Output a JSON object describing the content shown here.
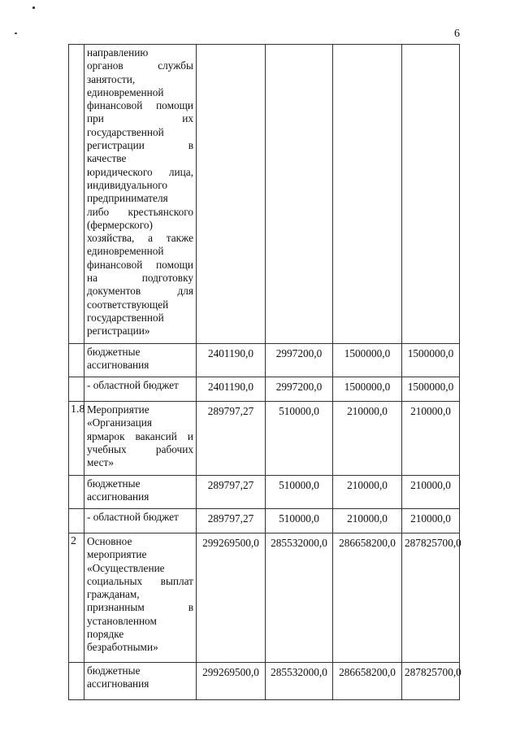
{
  "page_number": "6",
  "rows": [
    {
      "index": "",
      "lines": [
        "направлению",
        "органов службы",
        "занятости,",
        "единовременной",
        "финансовой помощи",
        "при их",
        "государственной",
        "регистрации в",
        "качестве",
        "юридического лица,",
        "индивидуального",
        "предпринимателя",
        "либо крестьянского",
        "(фермерского)",
        "хозяйства, а также",
        "единовременной",
        "финансовой помощи",
        "на подготовку",
        "документов для",
        "соответствующей",
        "государственной",
        "регистрации»"
      ],
      "values": [
        "",
        "",
        "",
        ""
      ]
    },
    {
      "index": "",
      "lines": [
        "бюджетные",
        "ассигнования"
      ],
      "values": [
        "2401190,0",
        "2997200,0",
        "1500000,0",
        "1500000,0"
      ]
    },
    {
      "index": "",
      "lines": [
        "- областной бюджет"
      ],
      "values": [
        "2401190,0",
        "2997200,0",
        "1500000,0",
        "1500000,0"
      ]
    },
    {
      "index": "1.8",
      "lines": [
        "Мероприятие",
        "«Организация",
        "ярмарок вакансий и",
        "учебных рабочих",
        "мест»"
      ],
      "values": [
        "289797,27",
        "510000,0",
        "210000,0",
        "210000,0"
      ]
    },
    {
      "index": "",
      "lines": [
        "бюджетные",
        "ассигнования"
      ],
      "values": [
        "289797,27",
        "510000,0",
        "210000,0",
        "210000,0"
      ]
    },
    {
      "index": "",
      "lines": [
        "- областной бюджет"
      ],
      "values": [
        "289797,27",
        "510000,0",
        "210000,0",
        "210000,0"
      ]
    },
    {
      "index": "2",
      "lines": [
        "Основное",
        "мероприятие",
        "«Осуществление",
        "социальных выплат",
        "гражданам,",
        "признанным в",
        "установленном",
        "порядке",
        "безработными»"
      ],
      "values": [
        "299269500,0",
        "285532000,0",
        "286658200,0",
        "287825700,0"
      ]
    },
    {
      "index": "",
      "lines": [
        "бюджетные",
        "ассигнования"
      ],
      "values": [
        "299269500,0",
        "285532000,0",
        "286658200,0",
        "287825700,0"
      ]
    }
  ]
}
